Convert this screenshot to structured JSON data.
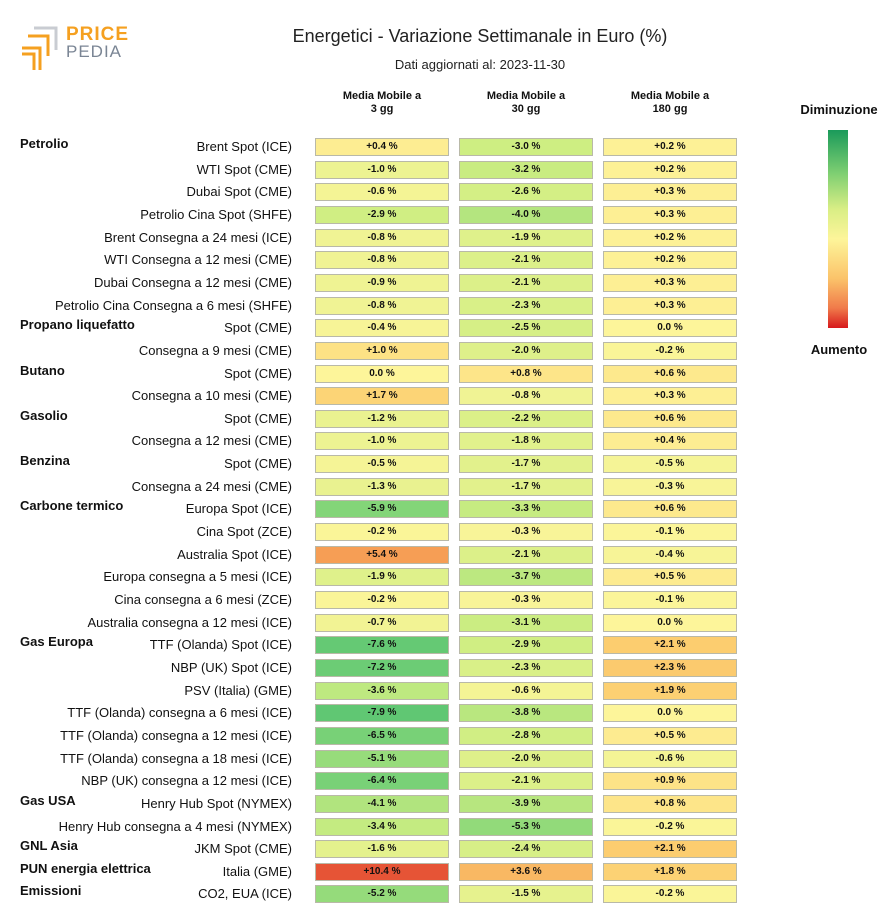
{
  "logo": {
    "line1": "PRICE",
    "line2": "PEDIA"
  },
  "title": "Energetici - Variazione Settimanale in Euro (%)",
  "subtitle": "Dati aggiornati al: 2023-11-30",
  "legend": {
    "top_label": "Diminuzione",
    "bottom_label": "Aumento"
  },
  "colors": {
    "min_green": "#1a9a5a",
    "neutral_yellow": "#fdf59a",
    "max_red": "#d7191c",
    "cell_border": "#b9b9a8"
  },
  "chart_data": {
    "type": "table",
    "title": "Energetici - Variazione Settimanale in Euro (%)",
    "columns": [
      "Media Mobile a 3 gg",
      "Media Mobile a 30 gg",
      "Media Mobile a 180 gg"
    ],
    "column_lines": [
      [
        "Media Mobile a",
        "3 gg"
      ],
      [
        "Media Mobile a",
        "30 gg"
      ],
      [
        "Media Mobile a",
        "180 gg"
      ]
    ],
    "rows": [
      {
        "group": "Petrolio",
        "label": "Brent Spot (ICE)",
        "values": [
          "+0.4 %",
          "-3.0 %",
          "+0.2 %"
        ]
      },
      {
        "group": "",
        "label": "WTI Spot (CME)",
        "values": [
          "-1.0 %",
          "-3.2 %",
          "+0.2 %"
        ]
      },
      {
        "group": "",
        "label": "Dubai Spot (CME)",
        "values": [
          "-0.6 %",
          "-2.6 %",
          "+0.3 %"
        ]
      },
      {
        "group": "",
        "label": "Petrolio Cina Spot (SHFE)",
        "values": [
          "-2.9 %",
          "-4.0 %",
          "+0.3 %"
        ]
      },
      {
        "group": "",
        "label": "Brent Consegna a 24 mesi (ICE)",
        "values": [
          "-0.8 %",
          "-1.9 %",
          "+0.2 %"
        ]
      },
      {
        "group": "",
        "label": "WTI Consegna a 12 mesi (CME)",
        "values": [
          "-0.8 %",
          "-2.1 %",
          "+0.2 %"
        ]
      },
      {
        "group": "",
        "label": "Dubai Consegna a 12 mesi (CME)",
        "values": [
          "-0.9 %",
          "-2.1 %",
          "+0.3 %"
        ]
      },
      {
        "group": "",
        "label": "Petrolio Cina Consegna a 6 mesi (SHFE)",
        "values": [
          "-0.8 %",
          "-2.3 %",
          "+0.3 %"
        ]
      },
      {
        "group": "Propano liquefatto",
        "label": "Spot (CME)",
        "values": [
          "-0.4 %",
          "-2.5 %",
          "0.0 %"
        ]
      },
      {
        "group": "",
        "label": "Consegna a 9 mesi (CME)",
        "values": [
          "+1.0 %",
          "-2.0 %",
          "-0.2 %"
        ]
      },
      {
        "group": "Butano",
        "label": "Spot (CME)",
        "values": [
          "0.0 %",
          "+0.8 %",
          "+0.6 %"
        ]
      },
      {
        "group": "",
        "label": "Consegna a 10 mesi (CME)",
        "values": [
          "+1.7 %",
          "-0.8 %",
          "+0.3 %"
        ]
      },
      {
        "group": "Gasolio",
        "label": "Spot (CME)",
        "values": [
          "-1.2 %",
          "-2.2 %",
          "+0.6 %"
        ]
      },
      {
        "group": "",
        "label": "Consegna a 12 mesi (CME)",
        "values": [
          "-1.0 %",
          "-1.8 %",
          "+0.4 %"
        ]
      },
      {
        "group": "Benzina",
        "label": "Spot (CME)",
        "values": [
          "-0.5 %",
          "-1.7 %",
          "-0.5 %"
        ]
      },
      {
        "group": "",
        "label": "Consegna a 24 mesi (CME)",
        "values": [
          "-1.3 %",
          "-1.7 %",
          "-0.3 %"
        ]
      },
      {
        "group": "Carbone termico",
        "label": "Europa Spot (ICE)",
        "values": [
          "-5.9 %",
          "-3.3 %",
          "+0.6 %"
        ]
      },
      {
        "group": "",
        "label": "Cina Spot (ZCE)",
        "values": [
          "-0.2 %",
          "-0.3 %",
          "-0.1 %"
        ]
      },
      {
        "group": "",
        "label": "Australia Spot (ICE)",
        "values": [
          "+5.4 %",
          "-2.1 %",
          "-0.4 %"
        ]
      },
      {
        "group": "",
        "label": "Europa consegna a 5 mesi (ICE)",
        "values": [
          "-1.9 %",
          "-3.7 %",
          "+0.5 %"
        ]
      },
      {
        "group": "",
        "label": "Cina consegna a 6 mesi (ZCE)",
        "values": [
          "-0.2 %",
          "-0.3 %",
          "-0.1 %"
        ]
      },
      {
        "group": "",
        "label": "Australia consegna a 12 mesi (ICE)",
        "values": [
          "-0.7 %",
          "-3.1 %",
          "0.0 %"
        ]
      },
      {
        "group": "Gas Europa",
        "label": "TTF (Olanda) Spot (ICE)",
        "values": [
          "-7.6 %",
          "-2.9 %",
          "+2.1 %"
        ]
      },
      {
        "group": "",
        "label": "NBP (UK) Spot (ICE)",
        "values": [
          "-7.2 %",
          "-2.3 %",
          "+2.3 %"
        ]
      },
      {
        "group": "",
        "label": "PSV (Italia) (GME)",
        "values": [
          "-3.6 %",
          "-0.6 %",
          "+1.9 %"
        ]
      },
      {
        "group": "",
        "label": "TTF (Olanda) consegna a 6 mesi (ICE)",
        "values": [
          "-7.9 %",
          "-3.8 %",
          "0.0 %"
        ]
      },
      {
        "group": "",
        "label": "TTF (Olanda) consegna a 12 mesi (ICE)",
        "values": [
          "-6.5 %",
          "-2.8 %",
          "+0.5 %"
        ]
      },
      {
        "group": "",
        "label": "TTF (Olanda) consegna a 18 mesi (ICE)",
        "values": [
          "-5.1 %",
          "-2.0 %",
          "-0.6 %"
        ]
      },
      {
        "group": "",
        "label": "NBP (UK) consegna a 12 mesi (ICE)",
        "values": [
          "-6.4 %",
          "-2.1 %",
          "+0.9 %"
        ]
      },
      {
        "group": "Gas USA",
        "label": "Henry Hub Spot (NYMEX)",
        "values": [
          "-4.1 %",
          "-3.9 %",
          "+0.8 %"
        ]
      },
      {
        "group": "",
        "label": "Henry Hub consegna a 4 mesi (NYMEX)",
        "values": [
          "-3.4 %",
          "-5.3 %",
          "-0.2 %"
        ]
      },
      {
        "group": "GNL Asia",
        "label": "JKM Spot (CME)",
        "values": [
          "-1.6 %",
          "-2.4 %",
          "+2.1 %"
        ]
      },
      {
        "group": "PUN energia elettrica",
        "label": "Italia (GME)",
        "values": [
          "+10.4 %",
          "+3.6 %",
          "+1.8 %"
        ]
      },
      {
        "group": "Emissioni",
        "label": "CO2, EUA (ICE)",
        "values": [
          "-5.2 %",
          "-1.5 %",
          "-0.2 %"
        ]
      }
    ]
  }
}
